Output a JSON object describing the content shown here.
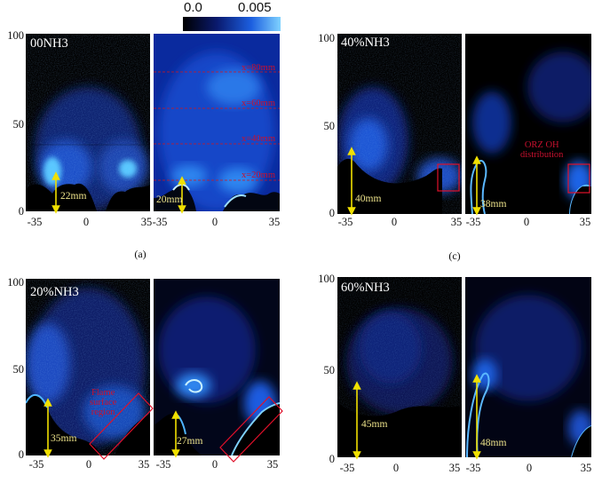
{
  "colorbar": {
    "min": "0.0",
    "max": "0.005",
    "colors": [
      "#000000",
      "#0a1a6e",
      "#1c5fe0",
      "#7fd2ff"
    ]
  },
  "y_ticks": [
    "100",
    "50",
    "0"
  ],
  "x_ticks": [
    "-35",
    "0",
    "35"
  ],
  "panels": {
    "a": {
      "case": "00NH3",
      "caption": "(a)",
      "meas_left": "22mm",
      "meas_right": "20mm",
      "stations": [
        "x=80mm",
        "x=60mm",
        "x=40mm",
        "x=20mm"
      ]
    },
    "b": {
      "case": "20%NH3",
      "meas_left": "35mm",
      "meas_right": "27mm",
      "note": [
        "Flame",
        "surface",
        "region"
      ]
    },
    "c": {
      "case": "40%NH3",
      "caption": "(c)",
      "meas_left": "40mm",
      "meas_right": "38mm",
      "note": [
        "ORZ OH",
        "distribution"
      ]
    },
    "d": {
      "case": "60%NH3",
      "meas_left": "45mm",
      "meas_right": "48mm"
    }
  },
  "chart_data": {
    "type": "heatmap",
    "variable": "OH",
    "colorbar_range": [
      0.0,
      0.005
    ],
    "panels": [
      {
        "case": "00NH3",
        "xlim": [
          -35,
          35
        ],
        "ylim": [
          0,
          100
        ],
        "measured_lengths_mm": [
          22,
          20
        ]
      },
      {
        "case": "20%NH3",
        "xlim": [
          -35,
          35
        ],
        "ylim": [
          0,
          100
        ],
        "measured_lengths_mm": [
          35,
          27
        ]
      },
      {
        "case": "40%NH3",
        "xlim": [
          -35,
          35
        ],
        "ylim": [
          0,
          100
        ],
        "measured_lengths_mm": [
          40,
          38
        ]
      },
      {
        "case": "60%NH3",
        "xlim": [
          -35,
          35
        ],
        "ylim": [
          0,
          100
        ],
        "measured_lengths_mm": [
          45,
          48
        ]
      }
    ]
  }
}
